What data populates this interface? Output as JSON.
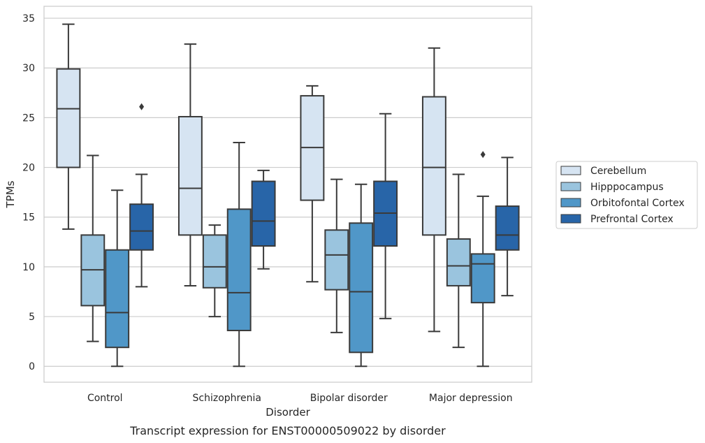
{
  "chart_data": {
    "type": "box",
    "caption": "Transcript expression for ENST00000509022 by disorder",
    "xlabel": "Disorder",
    "ylabel": "TPMs",
    "ylim": [
      -1.6,
      36.2
    ],
    "yticks": [
      0,
      5,
      10,
      15,
      20,
      25,
      30,
      35
    ],
    "grid": true,
    "legend_position": "right",
    "categories": [
      "Control",
      "Schizophrenia",
      "Bipolar disorder",
      "Major depression"
    ],
    "series": [
      {
        "name": "Cerebellum",
        "color": "#d6e4f2",
        "boxes": [
          {
            "whisker_low": 13.8,
            "q1": 20.0,
            "median": 25.9,
            "q3": 29.9,
            "whisker_high": 34.4,
            "outliers": []
          },
          {
            "whisker_low": 8.1,
            "q1": 13.2,
            "median": 17.9,
            "q3": 25.1,
            "whisker_high": 32.4,
            "outliers": []
          },
          {
            "whisker_low": 8.5,
            "q1": 16.7,
            "median": 22.0,
            "q3": 27.2,
            "whisker_high": 28.2,
            "outliers": []
          },
          {
            "whisker_low": 3.5,
            "q1": 13.2,
            "median": 20.0,
            "q3": 27.1,
            "whisker_high": 32.0,
            "outliers": []
          }
        ]
      },
      {
        "name": "Hipppocampus",
        "color": "#9ac4de",
        "boxes": [
          {
            "whisker_low": 2.5,
            "q1": 6.1,
            "median": 9.7,
            "q3": 13.2,
            "whisker_high": 21.2,
            "outliers": []
          },
          {
            "whisker_low": 5.0,
            "q1": 7.9,
            "median": 10.0,
            "q3": 13.2,
            "whisker_high": 14.2,
            "outliers": []
          },
          {
            "whisker_low": 3.4,
            "q1": 7.7,
            "median": 11.2,
            "q3": 13.7,
            "whisker_high": 18.8,
            "outliers": []
          },
          {
            "whisker_low": 1.9,
            "q1": 8.1,
            "median": 10.1,
            "q3": 12.8,
            "whisker_high": 19.3,
            "outliers": []
          }
        ]
      },
      {
        "name": "Orbitofontal Cortex",
        "color": "#5097c8",
        "boxes": [
          {
            "whisker_low": 0.0,
            "q1": 1.9,
            "median": 5.4,
            "q3": 11.7,
            "whisker_high": 17.7,
            "outliers": []
          },
          {
            "whisker_low": 0.0,
            "q1": 3.6,
            "median": 7.4,
            "q3": 15.8,
            "whisker_high": 22.5,
            "outliers": []
          },
          {
            "whisker_low": 0.0,
            "q1": 1.4,
            "median": 7.5,
            "q3": 14.4,
            "whisker_high": 18.3,
            "outliers": []
          },
          {
            "whisker_low": 0.0,
            "q1": 6.4,
            "median": 10.3,
            "q3": 11.3,
            "whisker_high": 17.1,
            "outliers": [
              21.3
            ]
          }
        ]
      },
      {
        "name": "Prefrontal Cortex",
        "color": "#2865a8",
        "boxes": [
          {
            "whisker_low": 8.0,
            "q1": 11.7,
            "median": 13.6,
            "q3": 16.3,
            "whisker_high": 19.3,
            "outliers": [
              26.1
            ]
          },
          {
            "whisker_low": 9.8,
            "q1": 12.1,
            "median": 14.6,
            "q3": 18.6,
            "whisker_high": 19.7,
            "outliers": []
          },
          {
            "whisker_low": 4.8,
            "q1": 12.1,
            "median": 15.4,
            "q3": 18.6,
            "whisker_high": 25.4,
            "outliers": []
          },
          {
            "whisker_low": 7.1,
            "q1": 11.7,
            "median": 13.2,
            "q3": 16.1,
            "whisker_high": 21.0,
            "outliers": []
          }
        ]
      }
    ]
  }
}
